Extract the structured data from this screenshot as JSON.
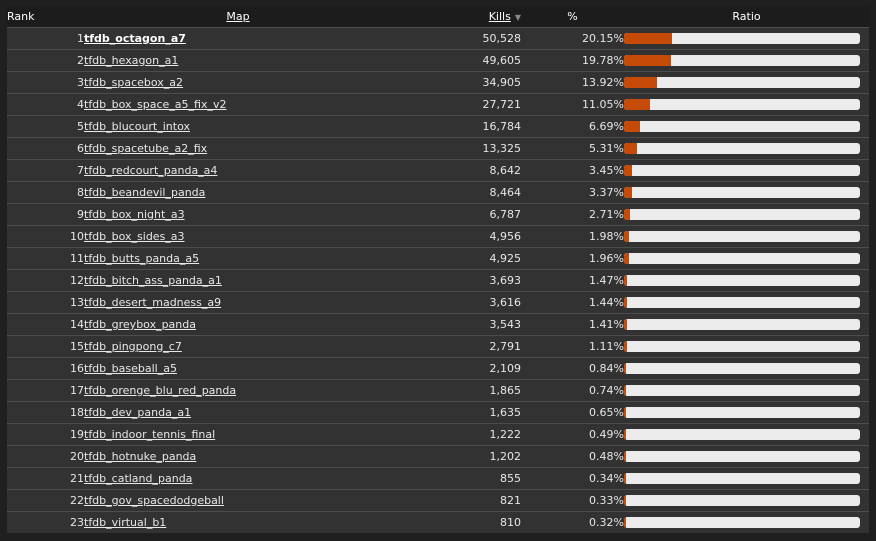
{
  "header": {
    "rank": "Rank",
    "map": "Map",
    "kills": "Kills",
    "percent": "%",
    "ratio": "Ratio"
  },
  "colors": {
    "bar_fill": "#c64a08",
    "bar_track": "#ececec",
    "row_bg": "#323232",
    "row_border": "#4d4d4d"
  },
  "rows": [
    {
      "rank": "1",
      "map": "tfdb_octagon_a7",
      "kills": "50,528",
      "percent": "20.15%",
      "ratio": 20.15
    },
    {
      "rank": "2",
      "map": "tfdb_hexagon_a1",
      "kills": "49,605",
      "percent": "19.78%",
      "ratio": 19.78
    },
    {
      "rank": "3",
      "map": "tfdb_spacebox_a2",
      "kills": "34,905",
      "percent": "13.92%",
      "ratio": 13.92
    },
    {
      "rank": "4",
      "map": "tfdb_box_space_a5_fix_v2",
      "kills": "27,721",
      "percent": "11.05%",
      "ratio": 11.05
    },
    {
      "rank": "5",
      "map": "tfdb_blucourt_intox",
      "kills": "16,784",
      "percent": "6.69%",
      "ratio": 6.69
    },
    {
      "rank": "6",
      "map": "tfdb_spacetube_a2_fix",
      "kills": "13,325",
      "percent": "5.31%",
      "ratio": 5.31
    },
    {
      "rank": "7",
      "map": "tfdb_redcourt_panda_a4",
      "kills": "8,642",
      "percent": "3.45%",
      "ratio": 3.45
    },
    {
      "rank": "8",
      "map": "tfdb_beandevil_panda",
      "kills": "8,464",
      "percent": "3.37%",
      "ratio": 3.37
    },
    {
      "rank": "9",
      "map": "tfdb_box_night_a3",
      "kills": "6,787",
      "percent": "2.71%",
      "ratio": 2.71
    },
    {
      "rank": "10",
      "map": "tfdb_box_sides_a3",
      "kills": "4,956",
      "percent": "1.98%",
      "ratio": 1.98
    },
    {
      "rank": "11",
      "map": "tfdb_butts_panda_a5",
      "kills": "4,925",
      "percent": "1.96%",
      "ratio": 1.96
    },
    {
      "rank": "12",
      "map": "tfdb_bitch_ass_panda_a1",
      "kills": "3,693",
      "percent": "1.47%",
      "ratio": 1.47
    },
    {
      "rank": "13",
      "map": "tfdb_desert_madness_a9",
      "kills": "3,616",
      "percent": "1.44%",
      "ratio": 1.44
    },
    {
      "rank": "14",
      "map": "tfdb_greybox_panda",
      "kills": "3,543",
      "percent": "1.41%",
      "ratio": 1.41
    },
    {
      "rank": "15",
      "map": "tfdb_pingpong_c7",
      "kills": "2,791",
      "percent": "1.11%",
      "ratio": 1.11
    },
    {
      "rank": "16",
      "map": "tfdb_baseball_a5",
      "kills": "2,109",
      "percent": "0.84%",
      "ratio": 0.84
    },
    {
      "rank": "17",
      "map": "tfdb_orenge_blu_red_panda",
      "kills": "1,865",
      "percent": "0.74%",
      "ratio": 0.74
    },
    {
      "rank": "18",
      "map": "tfdb_dev_panda_a1",
      "kills": "1,635",
      "percent": "0.65%",
      "ratio": 0.65
    },
    {
      "rank": "19",
      "map": "tfdb_indoor_tennis_final",
      "kills": "1,222",
      "percent": "0.49%",
      "ratio": 0.49
    },
    {
      "rank": "20",
      "map": "tfdb_hotnuke_panda",
      "kills": "1,202",
      "percent": "0.48%",
      "ratio": 0.48
    },
    {
      "rank": "21",
      "map": "tfdb_catland_panda",
      "kills": "855",
      "percent": "0.34%",
      "ratio": 0.34
    },
    {
      "rank": "22",
      "map": "tfdb_gov_spacedodgeball",
      "kills": "821",
      "percent": "0.33%",
      "ratio": 0.33
    },
    {
      "rank": "23",
      "map": "tfdb_virtual_b1",
      "kills": "810",
      "percent": "0.32%",
      "ratio": 0.32
    }
  ]
}
